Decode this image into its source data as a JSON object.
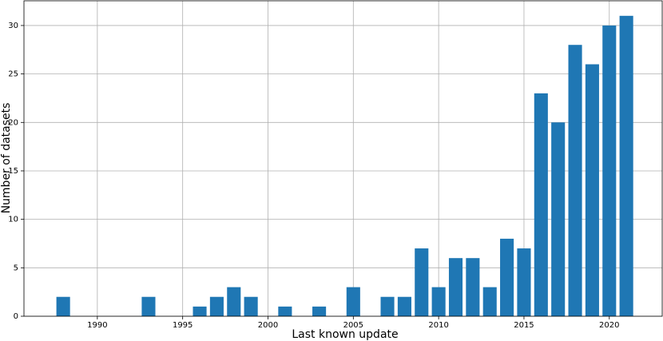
{
  "chart_data": {
    "type": "bar",
    "x_label": "Last known update",
    "y_label": "Number of datasets",
    "x": [
      1988,
      1993,
      1996,
      1997,
      1998,
      1999,
      2001,
      2003,
      2005,
      2007,
      2008,
      2009,
      2010,
      2011,
      2012,
      2013,
      2014,
      2015,
      2016,
      2017,
      2018,
      2019,
      2020,
      2021
    ],
    "values": [
      2,
      2,
      1,
      2,
      3,
      2,
      1,
      1,
      3,
      2,
      2,
      7,
      3,
      6,
      6,
      3,
      8,
      7,
      23,
      20,
      28,
      26,
      30,
      31
    ],
    "color": "#1f77b4",
    "xlim": [
      1985.7,
      2023.1
    ],
    "xticks": [
      1990,
      1995,
      2000,
      2005,
      2010,
      2015,
      2020
    ],
    "ylim": [
      0,
      32.55
    ],
    "yticks": [
      0,
      5,
      10,
      15,
      20,
      25,
      30
    ],
    "grid": true
  }
}
